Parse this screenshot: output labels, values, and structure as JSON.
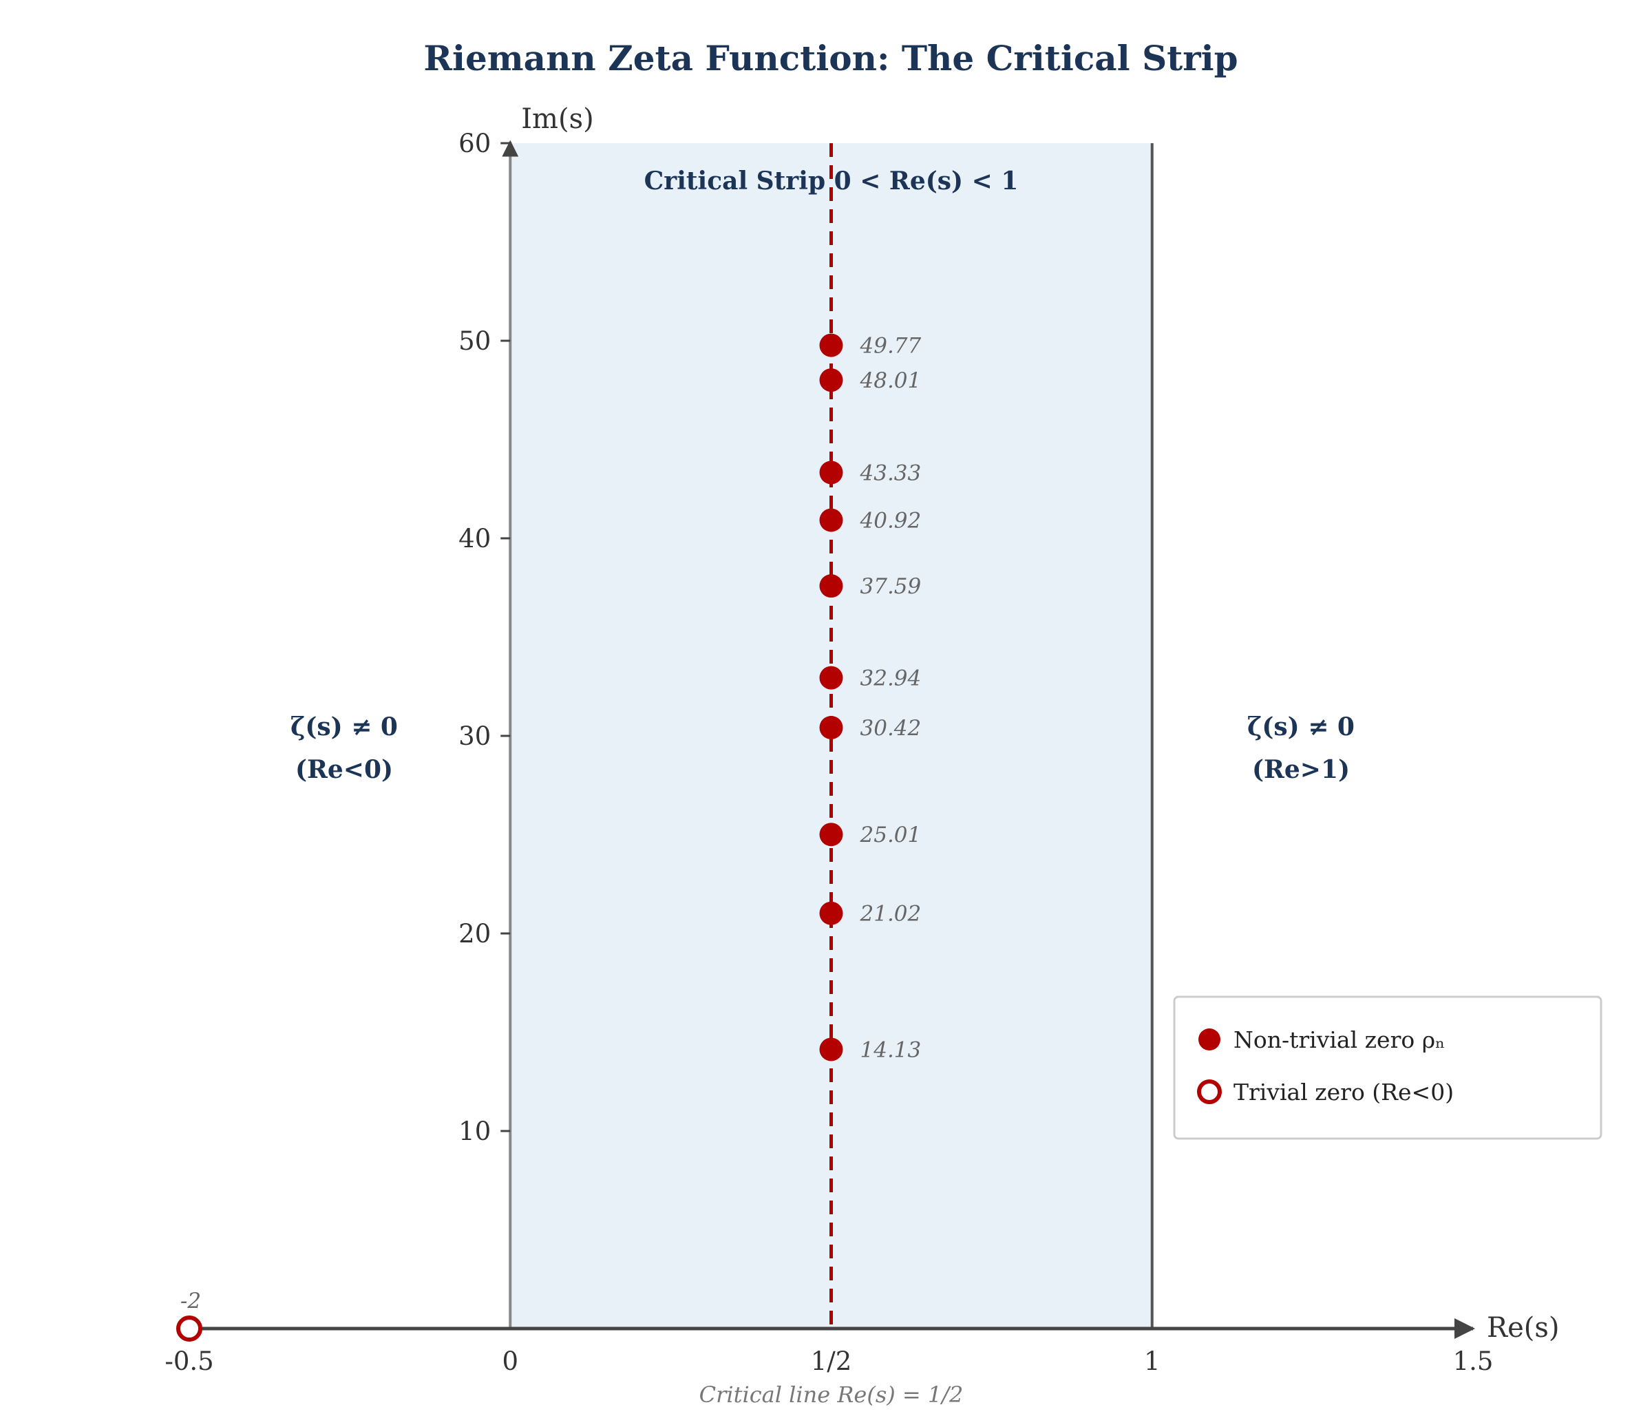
{
  "chart_data": {
    "type": "scatter",
    "title": "Riemann Zeta Function: The Critical Strip",
    "xlabel": "Re(s)",
    "ylabel": "Im(s)",
    "xlim": [
      -0.5,
      1.5
    ],
    "ylim": [
      0,
      60
    ],
    "x_ticks": [
      {
        "value": -0.5,
        "label": "-0.5"
      },
      {
        "value": 0,
        "label": "0"
      },
      {
        "value": 0.5,
        "label": "1/2"
      },
      {
        "value": 1,
        "label": "1"
      },
      {
        "value": 1.5,
        "label": "1.5"
      }
    ],
    "y_ticks": [
      {
        "value": 10,
        "label": "10"
      },
      {
        "value": 20,
        "label": "20"
      },
      {
        "value": 30,
        "label": "30"
      },
      {
        "value": 40,
        "label": "40"
      },
      {
        "value": 50,
        "label": "50"
      },
      {
        "value": 60,
        "label": "60"
      }
    ],
    "critical_strip": {
      "x_range": [
        0,
        1
      ],
      "label": "Critical Strip 0 < Re(s) < 1",
      "fill": "#e8f0f8"
    },
    "critical_line": {
      "x": 0.5,
      "caption": "Critical line Re(s) = 1/2",
      "color": "#b30000"
    },
    "series": [
      {
        "name": "Non-trivial zero ρₙ",
        "marker": "filled",
        "color": "#b30000",
        "points": [
          {
            "x": 0.5,
            "y": 14.13,
            "label": "14.13"
          },
          {
            "x": 0.5,
            "y": 21.02,
            "label": "21.02"
          },
          {
            "x": 0.5,
            "y": 25.01,
            "label": "25.01"
          },
          {
            "x": 0.5,
            "y": 30.42,
            "label": "30.42"
          },
          {
            "x": 0.5,
            "y": 32.94,
            "label": "32.94"
          },
          {
            "x": 0.5,
            "y": 37.59,
            "label": "37.59"
          },
          {
            "x": 0.5,
            "y": 40.92,
            "label": "40.92"
          },
          {
            "x": 0.5,
            "y": 43.33,
            "label": "43.33"
          },
          {
            "x": 0.5,
            "y": 48.01,
            "label": "48.01"
          },
          {
            "x": 0.5,
            "y": 49.77,
            "label": "49.77"
          }
        ]
      },
      {
        "name": "Trivial zero (Re<0)",
        "marker": "hollow",
        "color": "#b30000",
        "points": [
          {
            "x": -0.5,
            "y": 0,
            "label": "-2"
          }
        ]
      }
    ],
    "annotations": {
      "left_region": [
        "ζ(s) ≠ 0",
        "(Re<0)"
      ],
      "right_region": [
        "ζ(s) ≠ 0",
        "(Re>1)"
      ]
    },
    "legend_position": "lower-right",
    "grid": false
  },
  "colors": {
    "title": "#1c3557",
    "axis": "#444444",
    "zero": "#b30000",
    "strip": "#e8f0f8"
  }
}
